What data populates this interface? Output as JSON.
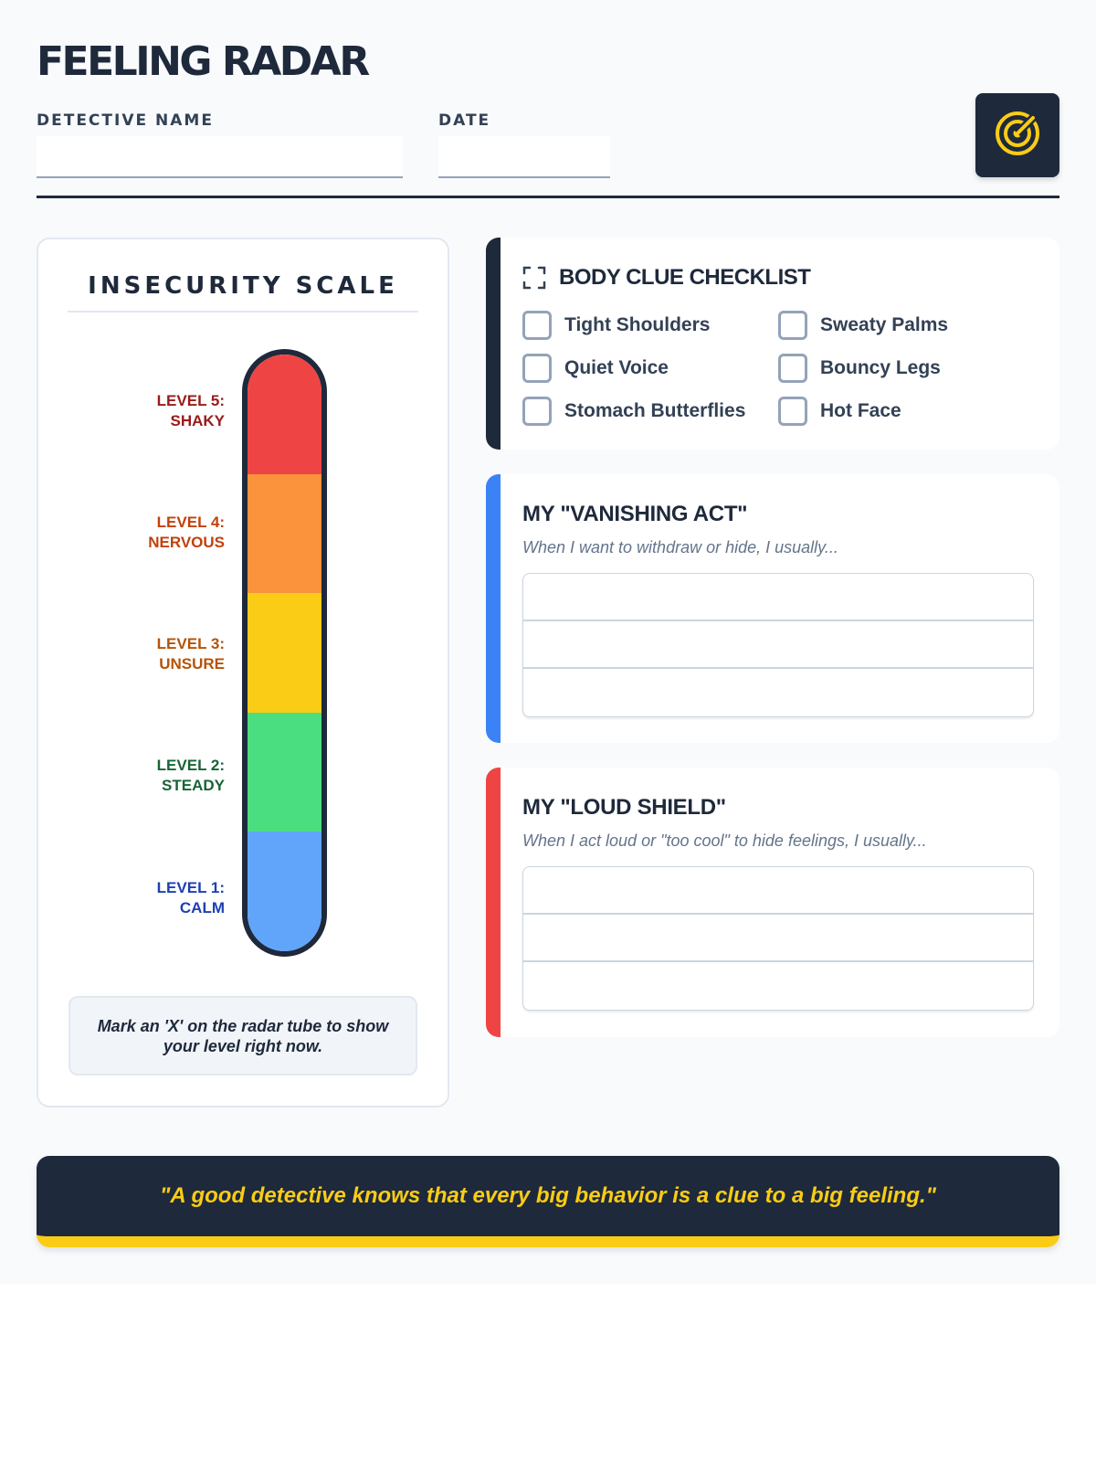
{
  "header": {
    "title": "FEELING RADAR",
    "name_label": "DETECTIVE NAME",
    "name_value": "",
    "date_label": "DATE",
    "date_value": "",
    "badge_icon": "radar-icon"
  },
  "scale": {
    "title": "INSECURITY SCALE",
    "levels": [
      {
        "line1": "LEVEL 5:",
        "line2": "SHAKY",
        "fill": "#ef4444",
        "text_color": "#991b1b"
      },
      {
        "line1": "LEVEL 4:",
        "line2": "NERVOUS",
        "fill": "#fb923c",
        "text_color": "#c2410c"
      },
      {
        "line1": "LEVEL 3:",
        "line2": "UNSURE",
        "fill": "#facc15",
        "text_color": "#b45309"
      },
      {
        "line1": "LEVEL 2:",
        "line2": "STEADY",
        "fill": "#4ade80",
        "text_color": "#166534"
      },
      {
        "line1": "LEVEL 1:",
        "line2": "CALM",
        "fill": "#60a5fa",
        "text_color": "#1e40af"
      }
    ],
    "hint": "Mark an 'X' on the radar tube to show your level right now."
  },
  "checklist": {
    "title": "BODY CLUE CHECKLIST",
    "icon": "scan-icon",
    "accent": "#1e293b",
    "items": [
      "Tight Shoulders",
      "Sweaty Palms",
      "Quiet Voice",
      "Bouncy Legs",
      "Stomach Butterflies",
      "Hot Face"
    ]
  },
  "vanishing": {
    "title": "MY \"VANISHING ACT\"",
    "prompt": "When I want to withdraw or hide, I usually...",
    "accent": "#3b82f6",
    "lines": [
      "",
      "",
      ""
    ]
  },
  "shield": {
    "title": "MY \"LOUD SHIELD\"",
    "prompt": "When I act loud or \"too cool\" to hide feelings, I usually...",
    "accent": "#ef4444",
    "lines": [
      "",
      "",
      ""
    ]
  },
  "footer": {
    "quote": "\"A good detective knows that every big behavior is a clue to a big feeling.\"",
    "accent": "#facc15"
  }
}
